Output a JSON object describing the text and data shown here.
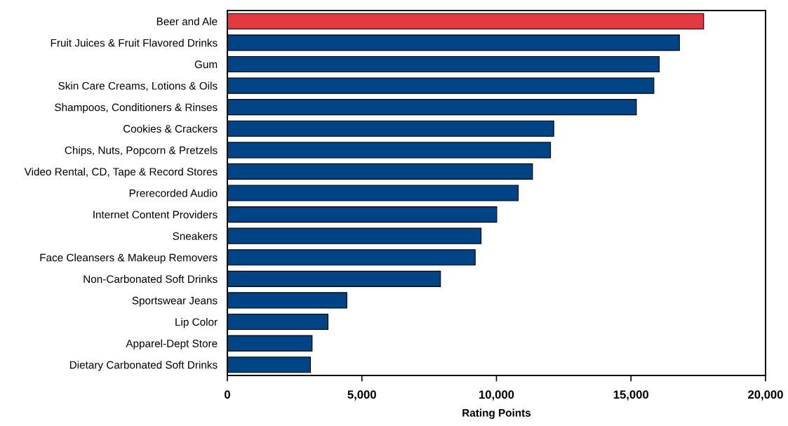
{
  "chart_data": {
    "type": "bar",
    "orientation": "horizontal",
    "xlabel": "Rating Points",
    "categories": [
      "Beer and Ale",
      "Fruit Juices & Fruit Flavored Drinks",
      "Gum",
      "Skin Care Creams, Lotions & Oils",
      "Shampoos, Conditioners & Rinses",
      "Cookies & Crackers",
      "Chips, Nuts, Popcorn & Pretzels",
      "Video Rental, CD, Tape & Record Stores",
      "Prerecorded Audio",
      "Internet Content Providers",
      "Sneakers",
      "Face Cleansers & Makeup Removers",
      "Non-Carbonated Soft Drinks",
      "Sportswear Jeans",
      "Lip Color",
      "Apparel-Dept Store",
      "Dietary Carbonated Soft Drinks"
    ],
    "values": [
      17700,
      16800,
      16050,
      15850,
      15200,
      12130,
      12010,
      11340,
      10810,
      10010,
      9430,
      9210,
      7920,
      4440,
      3740,
      3150,
      3090
    ],
    "colors": [
      "#e23a40",
      "#004485",
      "#004485",
      "#004485",
      "#004485",
      "#004485",
      "#004485",
      "#004485",
      "#004485",
      "#004485",
      "#004485",
      "#004485",
      "#004485",
      "#004485",
      "#004485",
      "#004485",
      "#004485"
    ],
    "xlim": [
      0,
      20000
    ],
    "xticks": [
      {
        "value": 0,
        "label": "0"
      },
      {
        "value": 5000,
        "label": "5,000"
      },
      {
        "value": 10000,
        "label": "10,000"
      },
      {
        "value": 15000,
        "label": "15,000"
      },
      {
        "value": 20000,
        "label": "20,000"
      }
    ],
    "grid": false,
    "legend": false
  }
}
